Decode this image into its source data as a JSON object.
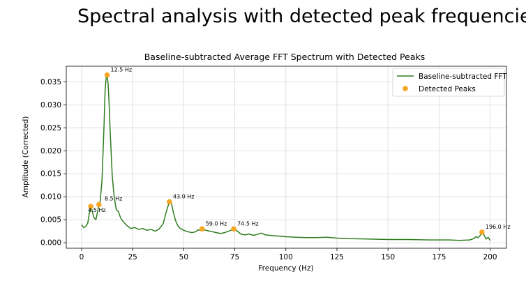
{
  "slide": {
    "title": "Spectral analysis with detected peak frequencies"
  },
  "chart_data": {
    "type": "line",
    "title": "Baseline-subtracted Average FFT Spectrum with Detected Peaks",
    "xlabel": "Frequency (Hz)",
    "ylabel": "Amplitude (Corrected)",
    "xlim": [
      -7.5,
      208
    ],
    "ylim": [
      -0.0012,
      0.0384
    ],
    "xticks": [
      0,
      25,
      50,
      75,
      100,
      125,
      150,
      175,
      200
    ],
    "yticks": [
      0.0,
      0.005,
      0.01,
      0.015,
      0.02,
      0.025,
      0.03,
      0.035
    ],
    "ytick_labels": [
      "0.000",
      "0.005",
      "0.010",
      "0.015",
      "0.020",
      "0.025",
      "0.030",
      "0.035"
    ],
    "grid": true,
    "legend_position": "top-right",
    "line_color": "#2e7d1e",
    "peak_color": "#f5a623",
    "series": [
      {
        "name": "Baseline-subtracted FFT",
        "x": [
          0,
          1,
          2,
          3,
          4,
          4.5,
          5,
          6,
          7,
          8,
          8.5,
          9,
          10,
          11,
          11.5,
          12,
          12.5,
          13,
          13.5,
          14,
          15,
          16,
          17,
          18,
          19,
          20,
          22,
          24,
          26,
          28,
          30,
          32,
          34,
          36,
          38,
          40,
          41,
          42,
          43,
          44,
          45,
          46,
          47,
          48,
          50,
          52,
          54,
          56,
          57,
          58,
          59,
          60,
          62,
          64,
          66,
          68,
          70,
          72,
          73,
          74,
          74.5,
          75,
          76,
          78,
          80,
          82,
          84,
          86,
          88,
          90,
          95,
          100,
          105,
          110,
          115,
          120,
          125,
          130,
          140,
          150,
          160,
          170,
          180,
          185,
          190,
          192,
          193,
          194,
          195,
          196,
          197,
          198,
          199,
          200
        ],
        "y": [
          0.0039,
          0.0033,
          0.0035,
          0.0042,
          0.007,
          0.0079,
          0.0072,
          0.0055,
          0.005,
          0.0071,
          0.0083,
          0.0085,
          0.0135,
          0.0258,
          0.033,
          0.0358,
          0.0365,
          0.0345,
          0.03,
          0.024,
          0.0145,
          0.0098,
          0.0072,
          0.0068,
          0.0055,
          0.0048,
          0.0038,
          0.0031,
          0.0033,
          0.0029,
          0.0031,
          0.0027,
          0.0029,
          0.0025,
          0.003,
          0.0042,
          0.006,
          0.0075,
          0.0089,
          0.0085,
          0.0065,
          0.0048,
          0.0038,
          0.0032,
          0.0027,
          0.0024,
          0.0022,
          0.0024,
          0.0028,
          0.0027,
          0.003,
          0.0028,
          0.0026,
          0.0024,
          0.0022,
          0.002,
          0.0022,
          0.0025,
          0.0027,
          0.0029,
          0.003,
          0.0029,
          0.0026,
          0.0019,
          0.0017,
          0.0019,
          0.0016,
          0.0018,
          0.0021,
          0.0017,
          0.0015,
          0.0013,
          0.0012,
          0.0011,
          0.0011,
          0.0012,
          0.001,
          0.0009,
          0.0008,
          0.0007,
          0.0007,
          0.0006,
          0.0006,
          0.0005,
          0.0006,
          0.0009,
          0.0013,
          0.0011,
          0.0015,
          0.0023,
          0.0017,
          0.0008,
          0.0012,
          0.0005
        ]
      }
    ],
    "peaks": {
      "name": "Detected Peaks",
      "points": [
        {
          "x": 4.5,
          "y": 0.0079,
          "label": "4.5 Hz"
        },
        {
          "x": 8.5,
          "y": 0.0083,
          "label": "8.5 Hz"
        },
        {
          "x": 12.5,
          "y": 0.0365,
          "label": "12.5 Hz"
        },
        {
          "x": 43.0,
          "y": 0.0089,
          "label": "43.0 Hz"
        },
        {
          "x": 59.0,
          "y": 0.003,
          "label": "59.0 Hz"
        },
        {
          "x": 74.5,
          "y": 0.003,
          "label": "74.5 Hz"
        },
        {
          "x": 196.0,
          "y": 0.0023,
          "label": "196.0 Hz"
        }
      ]
    }
  }
}
